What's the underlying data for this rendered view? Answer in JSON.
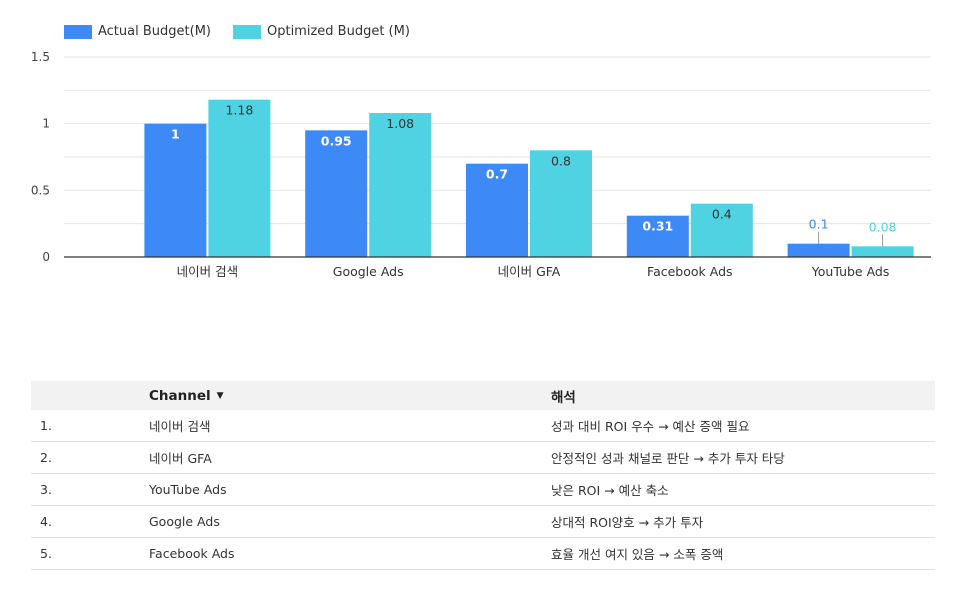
{
  "colors": {
    "actual": "#3d8af7",
    "optimized": "#4fd3e2",
    "axis": "#333333",
    "grid": "#e6e6e6"
  },
  "chart_data": {
    "type": "bar",
    "categories": [
      "네이버 검색",
      "Google Ads",
      "네이버 GFA",
      "Facebook Ads",
      "YouTube Ads"
    ],
    "series": [
      {
        "name": "Actual Budget(M)",
        "values": [
          1,
          0.95,
          0.7,
          0.31,
          0.1
        ],
        "labels": [
          "1",
          "0.95",
          "0.7",
          "0.31",
          "0.1"
        ]
      },
      {
        "name": "Optimized Budget (M)",
        "values": [
          1.18,
          1.08,
          0.8,
          0.4,
          0.08
        ],
        "labels": [
          "1.18",
          "1.08",
          "0.8",
          "0.4",
          "0.08"
        ]
      }
    ],
    "ylim": [
      0,
      1.5
    ],
    "yticks": [
      "0",
      "0.5",
      "1",
      "1.5"
    ],
    "ytick_values": [
      0,
      0.5,
      1,
      1.5
    ],
    "grid": true,
    "legend": "top-left"
  },
  "table": {
    "headers": {
      "channel": "Channel",
      "interpretation": "해석"
    },
    "rows": [
      {
        "index": "1.",
        "channel": "네이버 검색",
        "interpretation": "성과 대비 ROI 우수 → 예산 증액 필요"
      },
      {
        "index": "2.",
        "channel": "네이버 GFA",
        "interpretation": "안정적인 성과 채널로 판단 → 추가 투자 타당"
      },
      {
        "index": "3.",
        "channel": "YouTube Ads",
        "interpretation": "낮은 ROI → 예산 축소"
      },
      {
        "index": "4.",
        "channel": "Google Ads",
        "interpretation": "상대적 ROI양호 → 추가 투자"
      },
      {
        "index": "5.",
        "channel": "Facebook Ads",
        "interpretation": "효율 개선 여지 있음 → 소폭 증액"
      }
    ]
  }
}
